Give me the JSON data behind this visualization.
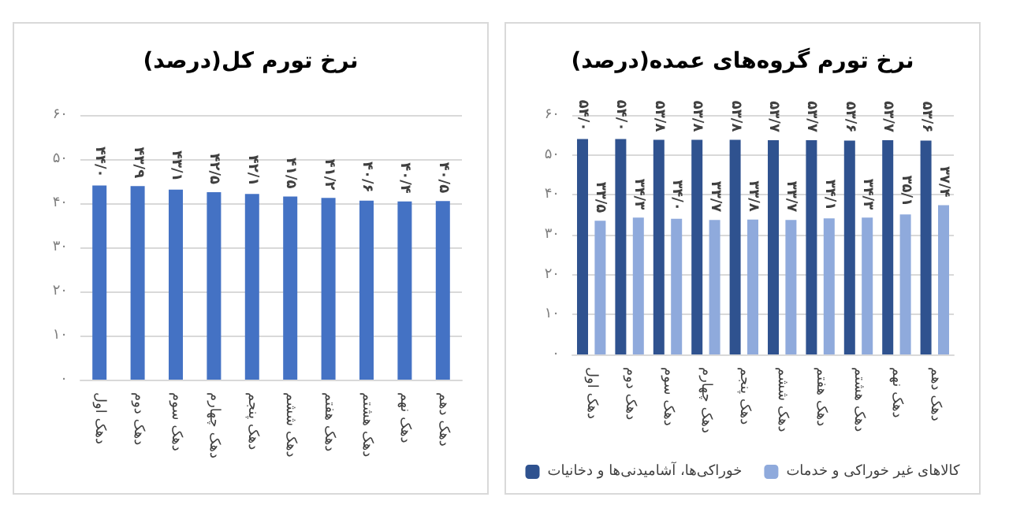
{
  "chart_data": [
    {
      "type": "bar",
      "title": "نرخ تورم کل(درصد)",
      "categories": [
        "دهک اول",
        "دهک دوم",
        "دهک سوم",
        "دهک چهارم",
        "دهک پنجم",
        "دهک ششم",
        "دهک هفتم",
        "دهک هشتم",
        "دهک نهم",
        "دهک دهم"
      ],
      "series": [
        {
          "color": "#4472c4",
          "values": [
            44.0,
            43.9,
            43.1,
            42.5,
            42.1,
            41.5,
            41.2,
            40.6,
            40.4,
            40.5
          ],
          "value_labels": [
            "۴۴/۰",
            "۴۳/۹",
            "۴۳/۱",
            "۴۲/۵",
            "۴۲/۱",
            "۴۱/۵",
            "۴۱/۲",
            "۴۰/۶",
            "۴۰/۴",
            "۴۰/۵"
          ]
        }
      ],
      "ylim": [
        0,
        60
      ],
      "yticks": [
        {
          "value": 0,
          "label": "۰"
        },
        {
          "value": 10,
          "label": "۱۰"
        },
        {
          "value": 20,
          "label": "۲۰"
        },
        {
          "value": 30,
          "label": "۳۰"
        },
        {
          "value": 40,
          "label": "۴۰"
        },
        {
          "value": 50,
          "label": "۵۰"
        },
        {
          "value": 60,
          "label": "۶۰"
        }
      ],
      "grid": "y"
    },
    {
      "type": "bar",
      "title": "نرخ تورم گروه‌های عمده(درصد)",
      "categories": [
        "دهک اول",
        "دهک دوم",
        "دهک سوم",
        "دهک چهارم",
        "دهک پنجم",
        "دهک ششم",
        "دهک هفتم",
        "دهک هشتم",
        "دهک نهم",
        "دهک دهم"
      ],
      "series": [
        {
          "name": "خوراکی‌ها، آشامیدنی‌ها و دخانیات",
          "color": "#2f528f",
          "values": [
            54.0,
            54.0,
            53.8,
            53.8,
            53.8,
            53.7,
            53.7,
            53.6,
            53.7,
            53.6
          ],
          "value_labels": [
            "۵۴/۰",
            "۵۴/۰",
            "۵۳/۸",
            "۵۳/۸",
            "۵۳/۸",
            "۵۳/۷",
            "۵۳/۷",
            "۵۳/۶",
            "۵۳/۷",
            "۵۳/۶"
          ]
        },
        {
          "name": "کالاهای غیر خوراکی و خدمات",
          "color": "#8faadc",
          "values": [
            33.5,
            34.3,
            34.0,
            33.7,
            33.8,
            33.7,
            34.1,
            34.3,
            35.1,
            37.4
          ],
          "value_labels": [
            "۳۳/۵",
            "۳۴/۳",
            "۳۴/۰",
            "۳۳/۷",
            "۳۳/۸",
            "۳۳/۷",
            "۳۴/۱",
            "۳۴/۳",
            "۳۵/۱",
            "۳۷/۴"
          ]
        }
      ],
      "ylim": [
        0,
        60
      ],
      "yticks": [
        {
          "value": 0,
          "label": "۰"
        },
        {
          "value": 10,
          "label": "۱۰"
        },
        {
          "value": 20,
          "label": "۲۰"
        },
        {
          "value": 30,
          "label": "۳۰"
        },
        {
          "value": 40,
          "label": "۴۰"
        },
        {
          "value": 50,
          "label": "۵۰"
        },
        {
          "value": 60,
          "label": "۶۰"
        }
      ],
      "grid": "y",
      "legend": "bottom"
    }
  ]
}
